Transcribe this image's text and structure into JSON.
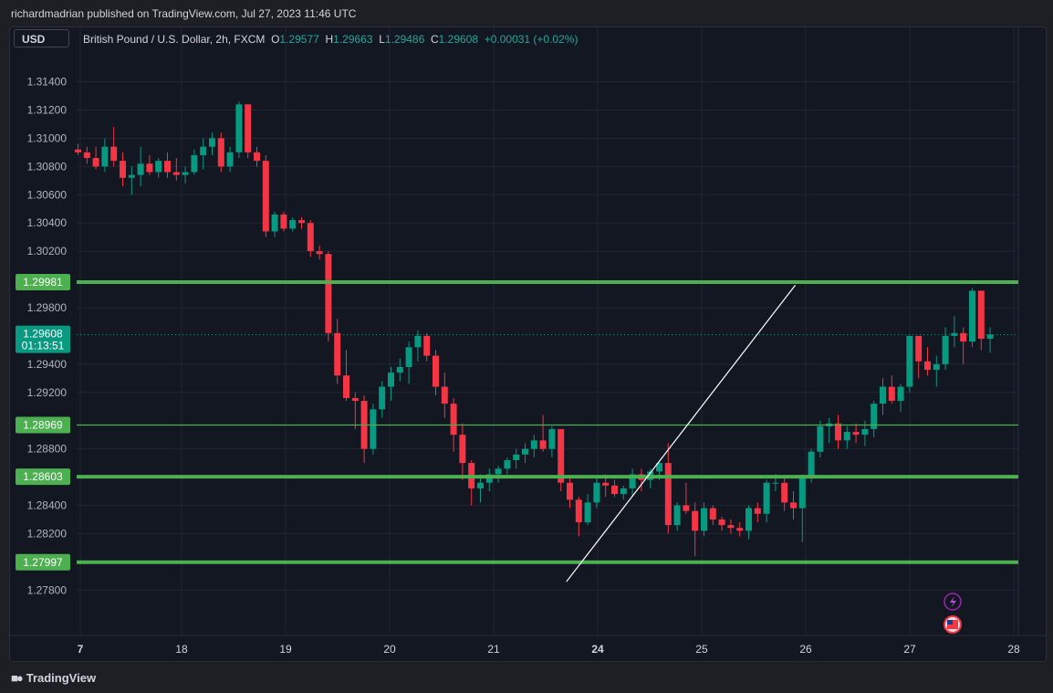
{
  "publisher": "richardmadrian published on TradingView.com, Jul 27, 2023 11:46 UTC",
  "currency_button": "USD",
  "legend": {
    "symbol": "British Pound / U.S. Dollar, 2h, FXCM",
    "o_label": "O",
    "o_value": "1.29577",
    "h_label": "H",
    "h_value": "1.29663",
    "l_label": "L",
    "l_value": "1.29486",
    "c_label": "C",
    "c_value": "1.29608",
    "change": "+0.00031 (+0.02%)"
  },
  "footer_brand": "TradingView",
  "colors": {
    "up": "#089981",
    "down": "#f23645",
    "level": "#4caf50",
    "background": "#131722",
    "grid": "#232632"
  },
  "chart_data": {
    "type": "candlestick",
    "symbol": "GBPUSD",
    "timeframe": "2h",
    "x_ticks": [
      "7",
      "18",
      "19",
      "20",
      "21",
      "24",
      "25",
      "26",
      "27",
      "28"
    ],
    "y_ticks": [
      "1.31400",
      "1.31200",
      "1.31000",
      "1.30800",
      "1.30600",
      "1.30400",
      "1.30200",
      "1.29800",
      "1.29400",
      "1.29200",
      "1.28800",
      "1.28400",
      "1.28200",
      "1.27800"
    ],
    "ylim": [
      1.2764,
      1.3152
    ],
    "horizontal_levels": [
      {
        "price": 1.29981,
        "label": "1.29981",
        "thick": true
      },
      {
        "price": 1.28969,
        "label": "1.28969",
        "thick": false
      },
      {
        "price": 1.28603,
        "label": "1.28603",
        "thick": true
      },
      {
        "price": 1.27997,
        "label": "1.27997",
        "thick": true
      }
    ],
    "last_price": {
      "label": "1.29608",
      "countdown": "01:13:51",
      "price": 1.29608
    },
    "trendline": {
      "from": [
        -0.3,
        1.2786
      ],
      "to": [
        1.9,
        1.2996
      ]
    },
    "candles": [
      [
        1.3092,
        1.3096,
        1.3088,
        1.309
      ],
      [
        1.309,
        1.3094,
        1.3082,
        1.3086
      ],
      [
        1.3086,
        1.3094,
        1.3078,
        1.308
      ],
      [
        1.308,
        1.31,
        1.3076,
        1.3094
      ],
      [
        1.3094,
        1.3108,
        1.308,
        1.3084
      ],
      [
        1.3084,
        1.309,
        1.3066,
        1.3072
      ],
      [
        1.3072,
        1.308,
        1.306,
        1.3074
      ],
      [
        1.3074,
        1.3094,
        1.3066,
        1.3082
      ],
      [
        1.3082,
        1.3088,
        1.3074,
        1.3076
      ],
      [
        1.3076,
        1.3086,
        1.3072,
        1.3084
      ],
      [
        1.3084,
        1.309,
        1.3072,
        1.3076
      ],
      [
        1.3076,
        1.3086,
        1.307,
        1.3074
      ],
      [
        1.3074,
        1.308,
        1.3068,
        1.3076
      ],
      [
        1.3076,
        1.3092,
        1.3074,
        1.3088
      ],
      [
        1.3088,
        1.31,
        1.3078,
        1.3094
      ],
      [
        1.3094,
        1.3104,
        1.3088,
        1.31
      ],
      [
        1.31,
        1.3104,
        1.3076,
        1.308
      ],
      [
        1.308,
        1.3094,
        1.3076,
        1.309
      ],
      [
        1.309,
        1.3126,
        1.3086,
        1.3124
      ],
      [
        1.3124,
        1.3124,
        1.3086,
        1.309
      ],
      [
        1.309,
        1.3094,
        1.308,
        1.3084
      ],
      [
        1.3084,
        1.3088,
        1.303,
        1.3034
      ],
      [
        1.3034,
        1.3048,
        1.303,
        1.3046
      ],
      [
        1.3046,
        1.3048,
        1.3034,
        1.3036
      ],
      [
        1.3036,
        1.3044,
        1.3034,
        1.3042
      ],
      [
        1.3042,
        1.3044,
        1.3036,
        1.304
      ],
      [
        1.304,
        1.3042,
        1.3016,
        1.302
      ],
      [
        1.302,
        1.3024,
        1.3014,
        1.3018
      ],
      [
        1.3018,
        1.302,
        1.2956,
        1.2962
      ],
      [
        1.2962,
        1.2972,
        1.2926,
        1.2932
      ],
      [
        1.2932,
        1.295,
        1.2914,
        1.2916
      ],
      [
        1.2916,
        1.292,
        1.2894,
        1.2914
      ],
      [
        1.2914,
        1.2918,
        1.287,
        1.288
      ],
      [
        1.288,
        1.2912,
        1.2876,
        1.2908
      ],
      [
        1.2908,
        1.2928,
        1.2902,
        1.2924
      ],
      [
        1.2924,
        1.2938,
        1.2914,
        1.2934
      ],
      [
        1.2934,
        1.2944,
        1.2928,
        1.2938
      ],
      [
        1.2938,
        1.2956,
        1.2926,
        1.2952
      ],
      [
        1.2952,
        1.2964,
        1.2942,
        1.296
      ],
      [
        1.296,
        1.2962,
        1.2942,
        1.2946
      ],
      [
        1.2946,
        1.295,
        1.2918,
        1.2924
      ],
      [
        1.2924,
        1.2934,
        1.2902,
        1.2912
      ],
      [
        1.2912,
        1.2916,
        1.2878,
        1.289
      ],
      [
        1.289,
        1.2898,
        1.2858,
        1.287
      ],
      [
        1.287,
        1.2872,
        1.284,
        1.2852
      ],
      [
        1.2852,
        1.2862,
        1.2842,
        1.2856
      ],
      [
        1.2856,
        1.2866,
        1.285,
        1.2862
      ],
      [
        1.2862,
        1.2868,
        1.2856,
        1.2866
      ],
      [
        1.2866,
        1.2874,
        1.2862,
        1.2872
      ],
      [
        1.2872,
        1.288,
        1.2866,
        1.2876
      ],
      [
        1.2876,
        1.2884,
        1.287,
        1.288
      ],
      [
        1.288,
        1.289,
        1.2874,
        1.2886
      ],
      [
        1.2886,
        1.2904,
        1.2878,
        1.288
      ],
      [
        1.288,
        1.2896,
        1.2874,
        1.2894
      ],
      [
        1.2894,
        1.2894,
        1.285,
        1.2856
      ],
      [
        1.2856,
        1.286,
        1.2838,
        1.2844
      ],
      [
        1.2844,
        1.2846,
        1.2818,
        1.2828
      ],
      [
        1.2828,
        1.2848,
        1.2826,
        1.2842
      ],
      [
        1.2842,
        1.286,
        1.2838,
        1.2856
      ],
      [
        1.2856,
        1.2862,
        1.2846,
        1.2854
      ],
      [
        1.2854,
        1.2858,
        1.2846,
        1.2848
      ],
      [
        1.2848,
        1.2854,
        1.2844,
        1.2852
      ],
      [
        1.2852,
        1.2866,
        1.2846,
        1.2862
      ],
      [
        1.2862,
        1.2866,
        1.285,
        1.2858
      ],
      [
        1.2858,
        1.2866,
        1.2852,
        1.2864
      ],
      [
        1.2864,
        1.2872,
        1.2858,
        1.287
      ],
      [
        1.287,
        1.2884,
        1.282,
        1.2826
      ],
      [
        1.2826,
        1.2842,
        1.2822,
        1.284
      ],
      [
        1.284,
        1.2856,
        1.2834,
        1.2836
      ],
      [
        1.2836,
        1.2842,
        1.2804,
        1.2822
      ],
      [
        1.2822,
        1.2842,
        1.2818,
        1.2838
      ],
      [
        1.2838,
        1.284,
        1.2826,
        1.283
      ],
      [
        1.283,
        1.2832,
        1.2822,
        1.2826
      ],
      [
        1.2826,
        1.283,
        1.282,
        1.2824
      ],
      [
        1.2824,
        1.2828,
        1.2818,
        1.2822
      ],
      [
        1.2822,
        1.284,
        1.2816,
        1.2838
      ],
      [
        1.2838,
        1.2842,
        1.2828,
        1.2834
      ],
      [
        1.2834,
        1.2858,
        1.2828,
        1.2856
      ],
      [
        1.2856,
        1.2862,
        1.285,
        1.2856
      ],
      [
        1.2856,
        1.286,
        1.2836,
        1.2842
      ],
      [
        1.2842,
        1.285,
        1.283,
        1.2838
      ],
      [
        1.2838,
        1.2862,
        1.2814,
        1.286
      ],
      [
        1.286,
        1.288,
        1.2856,
        1.2878
      ],
      [
        1.2878,
        1.29,
        1.2874,
        1.2896
      ],
      [
        1.2896,
        1.2902,
        1.2884,
        1.2898
      ],
      [
        1.2898,
        1.2904,
        1.288,
        1.2886
      ],
      [
        1.2886,
        1.2896,
        1.288,
        1.2892
      ],
      [
        1.2892,
        1.2898,
        1.2884,
        1.289
      ],
      [
        1.289,
        1.29,
        1.2882,
        1.2894
      ],
      [
        1.2894,
        1.2914,
        1.2888,
        1.2912
      ],
      [
        1.2912,
        1.293,
        1.2904,
        1.2924
      ],
      [
        1.2924,
        1.2932,
        1.2912,
        1.2914
      ],
      [
        1.2914,
        1.2926,
        1.2906,
        1.2924
      ],
      [
        1.2924,
        1.296,
        1.292,
        1.296
      ],
      [
        1.296,
        1.296,
        1.293,
        1.2942
      ],
      [
        1.2942,
        1.2952,
        1.2932,
        1.2936
      ],
      [
        1.2936,
        1.2946,
        1.2924,
        1.294
      ],
      [
        1.294,
        1.2966,
        1.2936,
        1.296
      ],
      [
        1.296,
        1.2974,
        1.2952,
        1.2962
      ],
      [
        1.2962,
        1.2966,
        1.294,
        1.2956
      ],
      [
        1.2956,
        1.2994,
        1.2952,
        1.2992
      ],
      [
        1.2992,
        1.2992,
        1.295,
        1.2958
      ],
      [
        1.2958,
        1.2966,
        1.2948,
        1.2961
      ]
    ]
  }
}
